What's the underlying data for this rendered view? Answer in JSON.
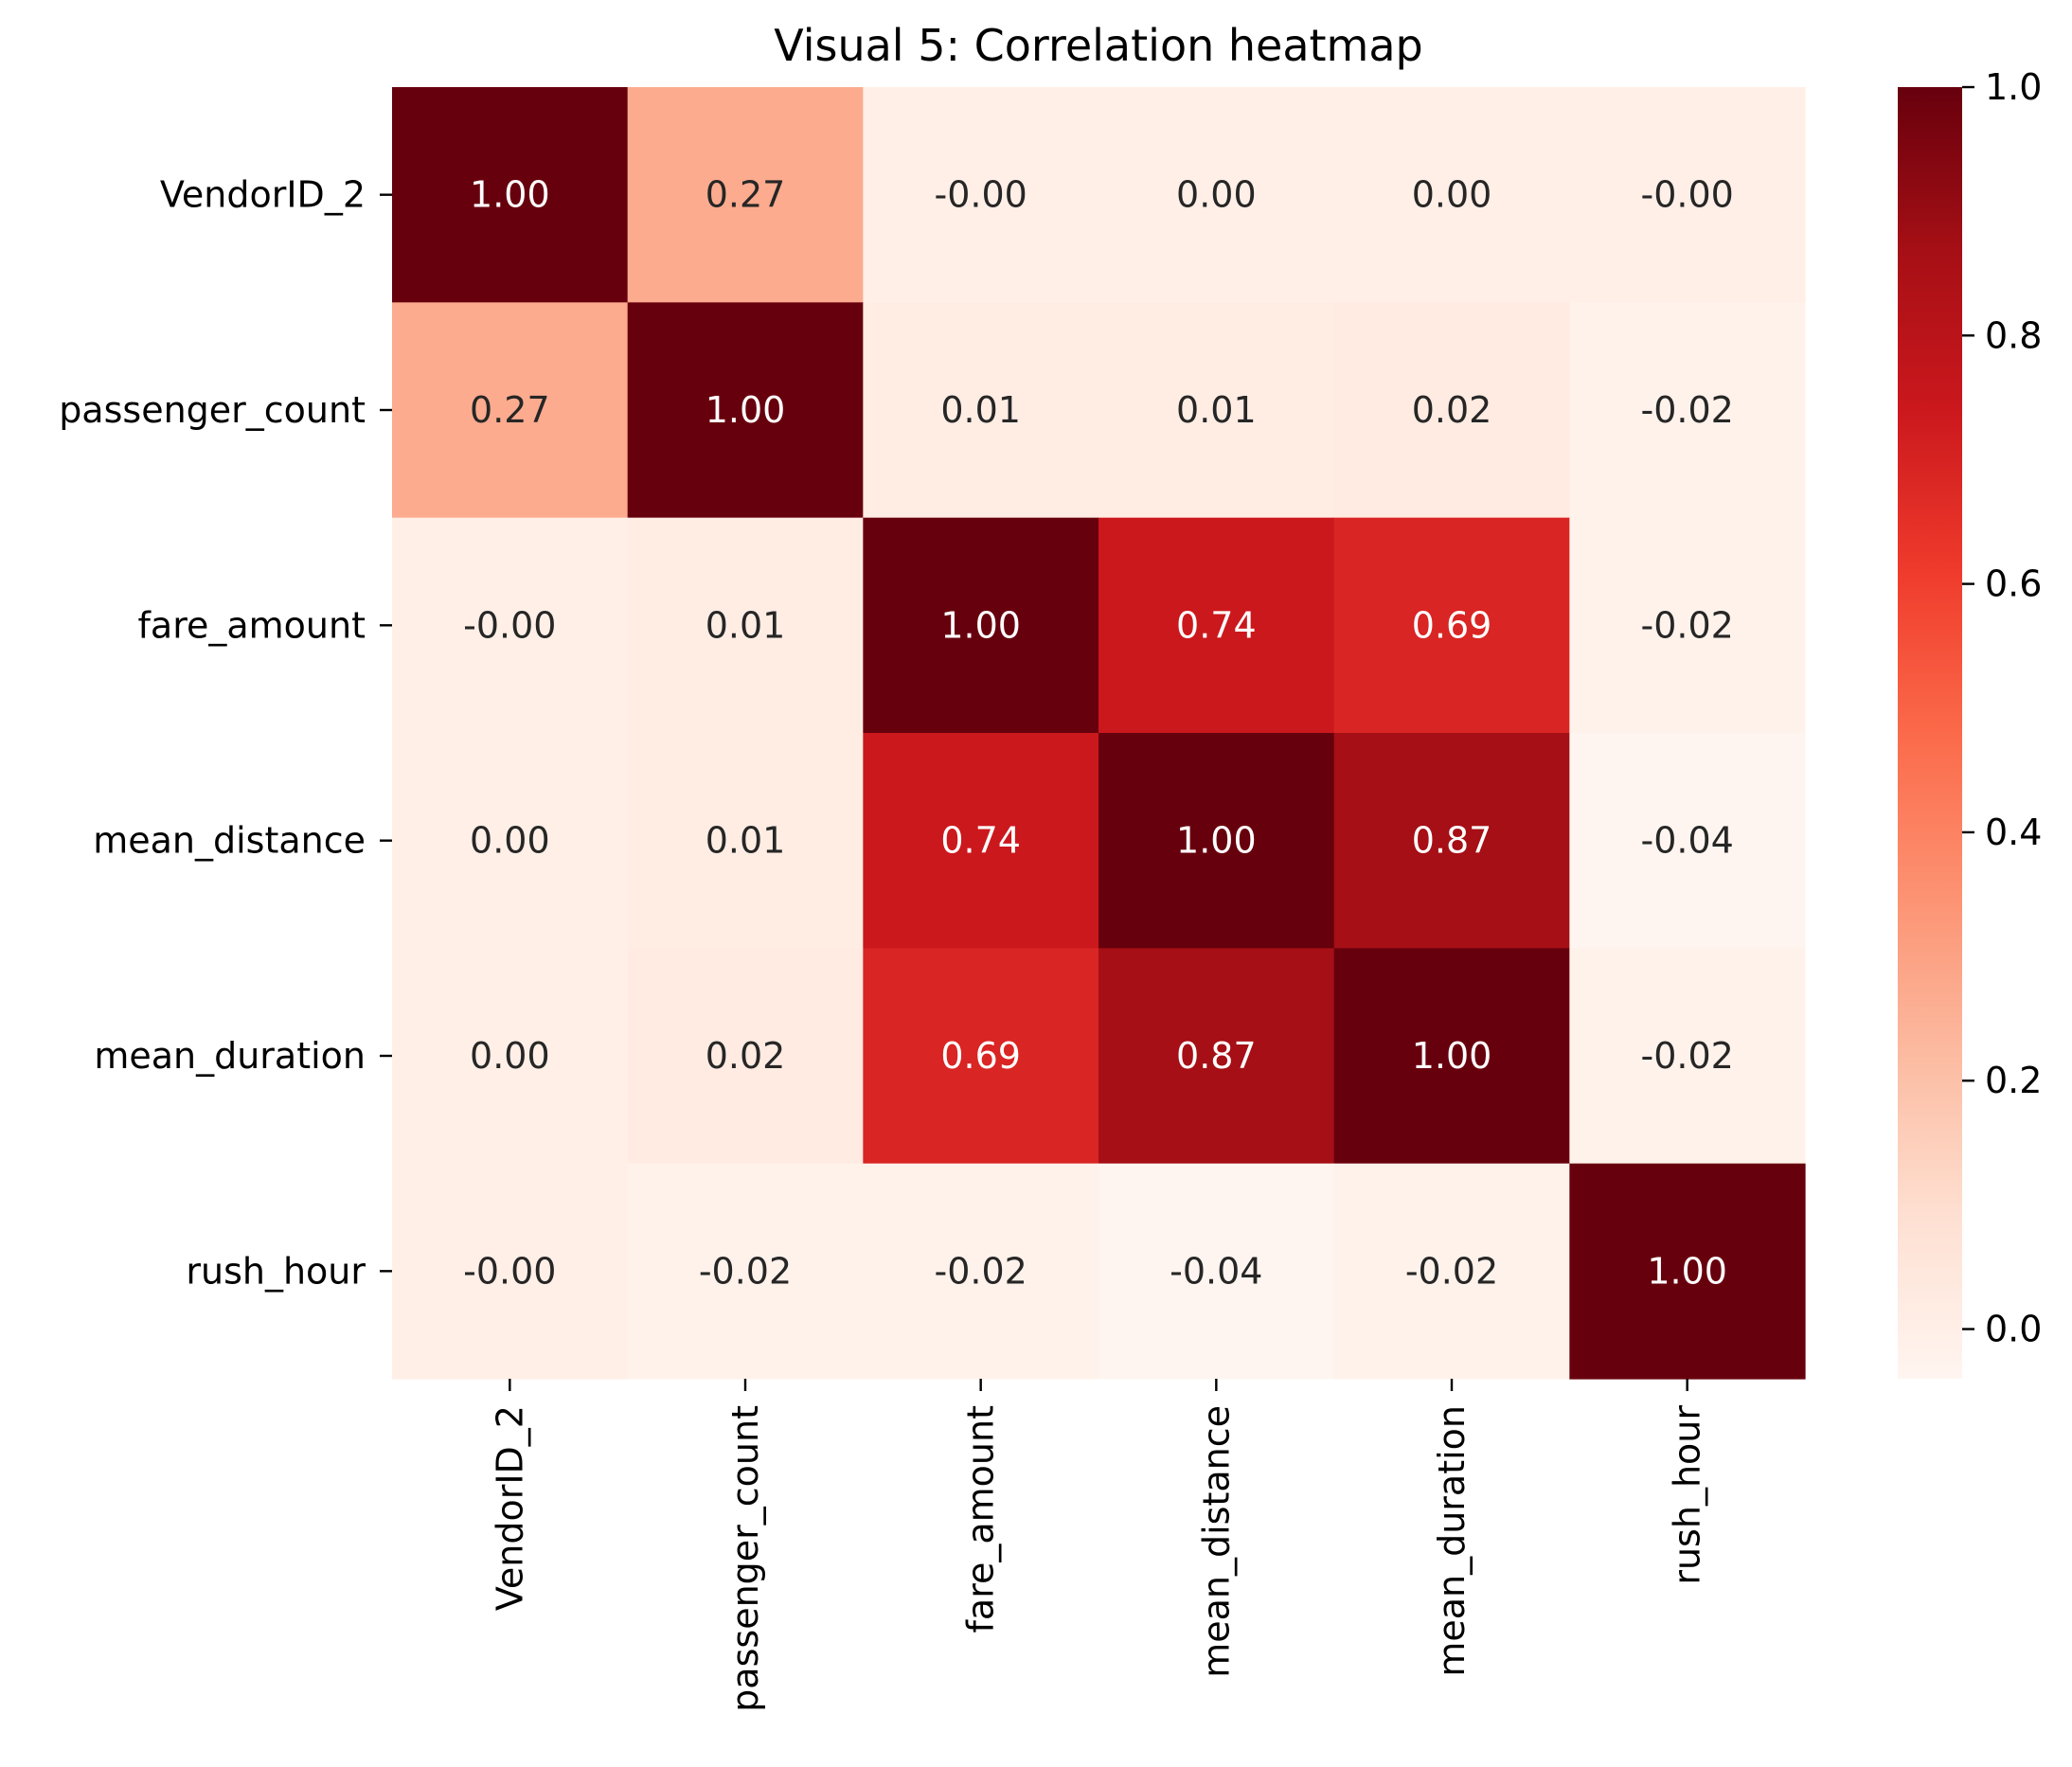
{
  "chart_data": {
    "type": "heatmap",
    "title": "Visual 5: Correlation heatmap",
    "xlabel": "",
    "ylabel": "",
    "rows": [
      "VendorID_2",
      "passenger_count",
      "fare_amount",
      "mean_distance",
      "mean_duration",
      "rush_hour"
    ],
    "columns": [
      "VendorID_2",
      "passenger_count",
      "fare_amount",
      "mean_distance",
      "mean_duration",
      "rush_hour"
    ],
    "values": [
      [
        1.0,
        0.27,
        -0.0,
        0.0,
        0.0,
        -0.0
      ],
      [
        0.27,
        1.0,
        0.01,
        0.01,
        0.02,
        -0.02
      ],
      [
        -0.0,
        0.01,
        1.0,
        0.74,
        0.69,
        -0.02
      ],
      [
        0.0,
        0.01,
        0.74,
        1.0,
        0.87,
        -0.04
      ],
      [
        0.0,
        0.02,
        0.69,
        0.87,
        1.0,
        -0.02
      ],
      [
        -0.0,
        -0.02,
        -0.02,
        -0.04,
        -0.02,
        1.0
      ]
    ],
    "annotations": [
      [
        "1.00",
        "0.27",
        "-0.00",
        "0.00",
        "0.00",
        "-0.00"
      ],
      [
        "0.27",
        "1.00",
        "0.01",
        "0.01",
        "0.02",
        "-0.02"
      ],
      [
        "-0.00",
        "0.01",
        "1.00",
        "0.74",
        "0.69",
        "-0.02"
      ],
      [
        "0.00",
        "0.01",
        "0.74",
        "1.00",
        "0.87",
        "-0.04"
      ],
      [
        "0.00",
        "0.02",
        "0.69",
        "0.87",
        "1.00",
        "-0.02"
      ],
      [
        "-0.00",
        "-0.02",
        "-0.02",
        "-0.04",
        "-0.02",
        "1.00"
      ]
    ],
    "colormap": "Reds",
    "color_range": [
      -0.04,
      1.0
    ],
    "colorbar": {
      "ticks": [
        0.0,
        0.2,
        0.4,
        0.6,
        0.8,
        1.0
      ],
      "tick_labels": [
        "0.0",
        "0.2",
        "0.4",
        "0.6",
        "0.8",
        "1.0"
      ]
    },
    "colorbar_stops": [
      "#fff5f0",
      "#fee0d2",
      "#fcbba1",
      "#fc9272",
      "#fb6a4a",
      "#ef3b2c",
      "#cb181d",
      "#a50f15",
      "#67000d"
    ],
    "annotation_colors": {
      "light": "#ffffff",
      "dark": "#262626"
    }
  }
}
